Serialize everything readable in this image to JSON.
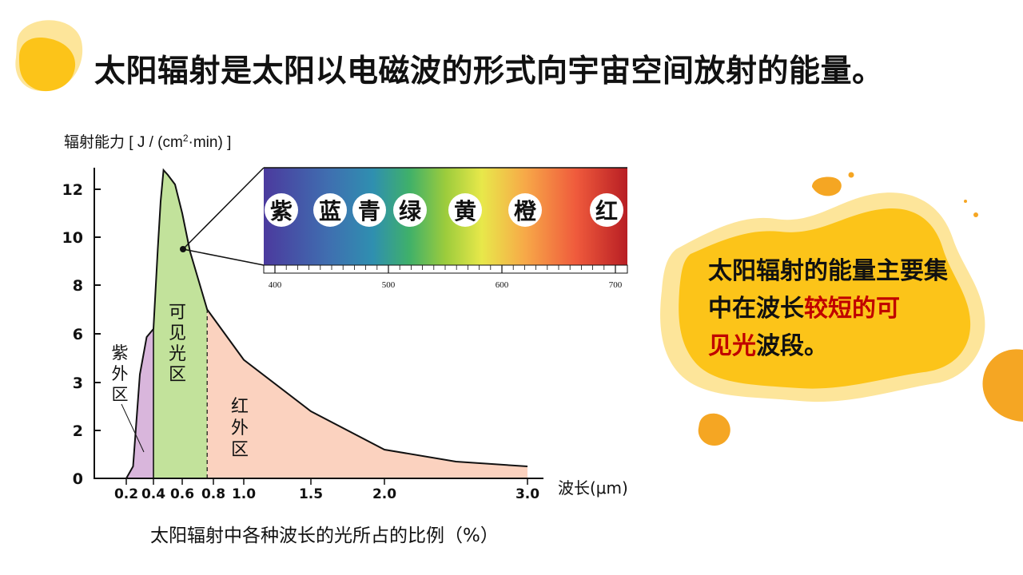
{
  "slide": {
    "title": "太阳辐射是太阳以电磁波的形式向宇宙空间放射的能量。",
    "caption": "太阳辐射中各种波长的光所占的比例（%）"
  },
  "colors": {
    "accent_yellow": "#fcc419",
    "accent_orange": "#f5a623",
    "blob_light": "#fde59a",
    "highlight_red": "#c00000",
    "uv_fill": "#d9b6dc",
    "visible_fill": "#c2e29b",
    "ir_fill": "#fbd2bf"
  },
  "callout": {
    "part1": "太阳辐射的能量主要集中在波长",
    "highlight1": "较短的可",
    "highlight2": "见光",
    "part2": "波段。"
  },
  "chart_data": {
    "type": "area",
    "ylabel": "辐射能力 [ J / (cm²·min) ]",
    "xlabel": "波长(μm)",
    "x_ticks": [
      "0.2",
      "0.4",
      "0.6",
      "0.8",
      "1.0",
      "1.5",
      "2.0",
      "3.0"
    ],
    "y_ticks": [
      "0",
      "2",
      "3",
      "6",
      "8",
      "10",
      "12"
    ],
    "regions": [
      {
        "label": "紫外区",
        "from": 0.2,
        "to": 0.4
      },
      {
        "label": "可见光区",
        "from": 0.4,
        "to": 0.76
      },
      {
        "label": "红外区",
        "from": 0.76,
        "to": 3.0
      }
    ],
    "curve": [
      {
        "x": 0.2,
        "y": 0.0
      },
      {
        "x": 0.25,
        "y": 0.5
      },
      {
        "x": 0.3,
        "y": 3.5
      },
      {
        "x": 0.35,
        "y": 5.8
      },
      {
        "x": 0.4,
        "y": 6.2
      },
      {
        "x": 0.43,
        "y": 9.5
      },
      {
        "x": 0.45,
        "y": 11.5
      },
      {
        "x": 0.47,
        "y": 12.8
      },
      {
        "x": 0.5,
        "y": 12.6
      },
      {
        "x": 0.55,
        "y": 12.2
      },
      {
        "x": 0.6,
        "y": 11.0
      },
      {
        "x": 0.65,
        "y": 9.4
      },
      {
        "x": 0.76,
        "y": 7.0
      },
      {
        "x": 1.0,
        "y": 4.4
      },
      {
        "x": 1.5,
        "y": 2.4
      },
      {
        "x": 2.0,
        "y": 1.2
      },
      {
        "x": 2.5,
        "y": 0.7
      },
      {
        "x": 3.0,
        "y": 0.5
      }
    ],
    "spectrum": {
      "tick_labels": [
        "400",
        "500",
        "600",
        "700"
      ],
      "colors": [
        "紫",
        "蓝",
        "青",
        "绿",
        "黄",
        "橙",
        "红"
      ]
    }
  }
}
